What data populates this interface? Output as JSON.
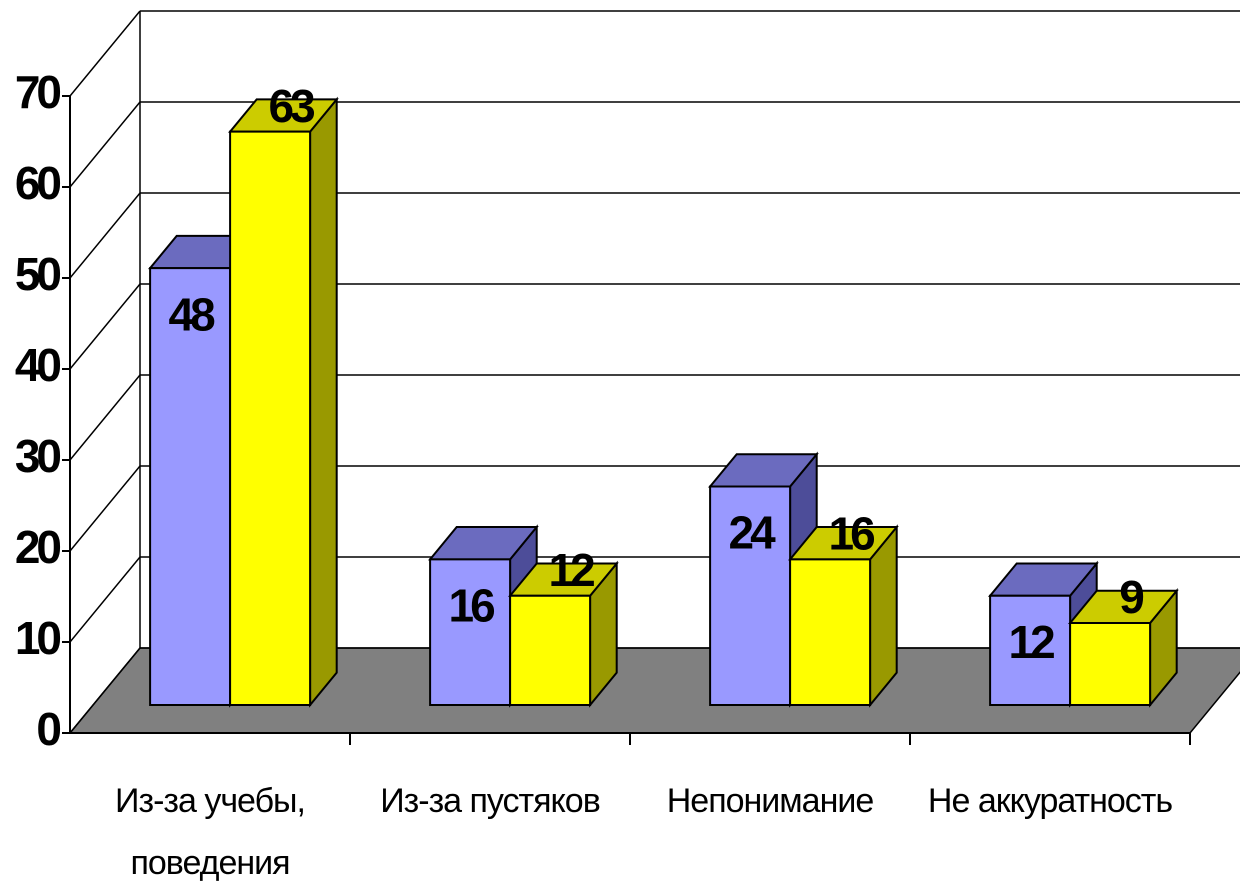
{
  "chart_data": {
    "type": "bar3d",
    "categories": [
      "Из-за учебы, поведения",
      "Из-за пустяков",
      "Непонимание",
      "Не аккуратность"
    ],
    "series": [
      {
        "color": "#9999ff",
        "values": [
          48,
          16,
          24,
          12
        ]
      },
      {
        "color": "#ffff00",
        "values": [
          63,
          12,
          16,
          9
        ]
      }
    ],
    "ylim": [
      0,
      70
    ],
    "yticks": [
      0,
      10,
      20,
      30,
      40,
      50,
      60,
      70
    ],
    "grid": true
  }
}
